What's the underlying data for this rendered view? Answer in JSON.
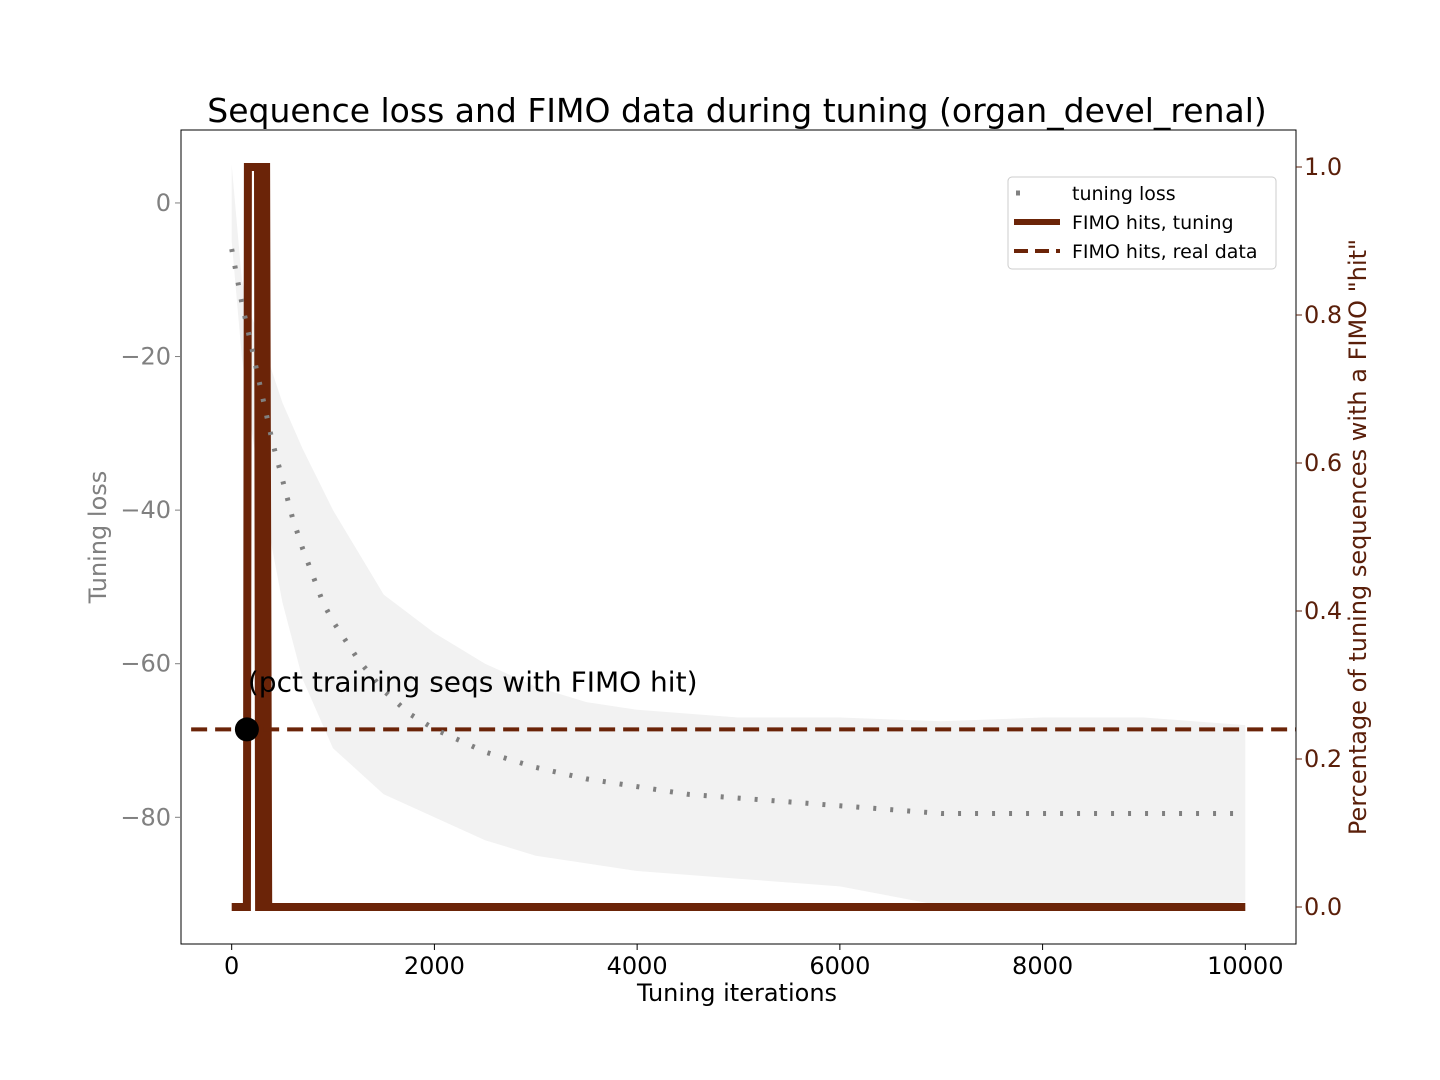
{
  "chart_data": {
    "type": "line",
    "title": "Sequence loss and FIMO data during tuning (organ_devel_renal)",
    "xlabel": "Tuning iterations",
    "ylabel_left": "Tuning loss",
    "ylabel_right": "Percentage of tuning sequences with a FIMO \"hit\"",
    "xlim": [
      -500,
      10500
    ],
    "ylim_left": [
      -96.5,
      9.5
    ],
    "ylim_right": [
      -0.05,
      1.05
    ],
    "x_ticks": [
      0,
      2000,
      4000,
      6000,
      8000,
      10000
    ],
    "x_tick_labels": [
      "0",
      "2000",
      "4000",
      "6000",
      "8000",
      "10000"
    ],
    "y_left_ticks": [
      0,
      -20,
      -40,
      -60,
      -80
    ],
    "y_left_tick_labels": [
      "0",
      "−20",
      "−40",
      "−60",
      "−80"
    ],
    "y_right_ticks": [
      0.0,
      0.2,
      0.4,
      0.6,
      0.8,
      1.0
    ],
    "y_right_tick_labels": [
      "0.0",
      "0.2",
      "0.4",
      "0.6",
      "0.8",
      "1.0"
    ],
    "grid": false,
    "legend_position": "upper right",
    "legend": [
      {
        "label": "tuning loss",
        "style": "dotted",
        "color": "#808080"
      },
      {
        "label": "FIMO hits, tuning",
        "style": "solid",
        "color": "#6b2408"
      },
      {
        "label": "FIMO hits, real data",
        "style": "dashed",
        "color": "#6b2408"
      }
    ],
    "series": [
      {
        "name": "tuning loss",
        "axis": "left",
        "color": "#808080",
        "style": "dotted",
        "x": [
          0,
          100,
          200,
          300,
          400,
          500,
          600,
          700,
          800,
          900,
          1000,
          1250,
          1500,
          1750,
          2000,
          2250,
          2500,
          2750,
          3000,
          3500,
          4000,
          4500,
          5000,
          5500,
          6000,
          6500,
          7000,
          7500,
          8000,
          8500,
          9000,
          9500,
          10000
        ],
        "y": [
          -6,
          -13,
          -19,
          -25,
          -31,
          -36,
          -41,
          -45,
          -48.5,
          -52,
          -54.5,
          -59.5,
          -63.5,
          -66.5,
          -68.5,
          -70,
          -71.5,
          -72.5,
          -73.5,
          -75,
          -76,
          -77,
          -77.5,
          -78,
          -78.5,
          -79,
          -79.5,
          -79.5,
          -79.5,
          -79.5,
          -79.5,
          -79.5,
          -79.5
        ]
      },
      {
        "name": "tuning loss band upper",
        "axis": "left",
        "color": "#f2f2f2",
        "style": "fill",
        "x": [
          0,
          100,
          200,
          300,
          400,
          500,
          700,
          1000,
          1500,
          2000,
          2500,
          3000,
          3500,
          4000,
          5000,
          6000,
          7000,
          8000,
          9000,
          10000
        ],
        "y": [
          5,
          -10,
          -15,
          -18,
          -22,
          -26,
          -32,
          -40,
          -51,
          -56,
          -60,
          -63,
          -65,
          -66,
          -67,
          -67,
          -67.5,
          -67,
          -67,
          -68
        ]
      },
      {
        "name": "tuning loss band lower",
        "axis": "left",
        "color": "#f2f2f2",
        "style": "fill",
        "x": [
          0,
          100,
          200,
          300,
          400,
          500,
          700,
          1000,
          1500,
          2000,
          2500,
          3000,
          3500,
          4000,
          5000,
          6000,
          7000,
          8000,
          9000,
          10000
        ],
        "y": [
          -5,
          -20,
          -30,
          -38,
          -45,
          -52,
          -62,
          -71,
          -77,
          -80,
          -83,
          -85,
          -86,
          -87,
          -88,
          -89,
          -91.5,
          -92,
          -92,
          -91
        ]
      },
      {
        "name": "FIMO hits, tuning",
        "axis": "right",
        "color": "#6b2408",
        "style": "solid",
        "x": [
          0,
          130,
          150,
          160,
          260,
          270,
          290,
          300,
          340,
          360,
          400,
          10000
        ],
        "y": [
          0,
          0,
          0,
          1,
          1,
          0,
          0,
          1,
          1,
          0,
          0,
          0
        ]
      },
      {
        "name": "FIMO hits, real data",
        "axis": "right",
        "color": "#6b2408",
        "style": "dashed",
        "x": [
          -400,
          10500
        ],
        "y": [
          0.24,
          0.24
        ]
      }
    ],
    "annotations": [
      {
        "text": "(pct training seqs with FIMO hit)",
        "x": 150,
        "y_right": 0.24,
        "marker": "circle",
        "marker_color": "#000000"
      }
    ]
  }
}
